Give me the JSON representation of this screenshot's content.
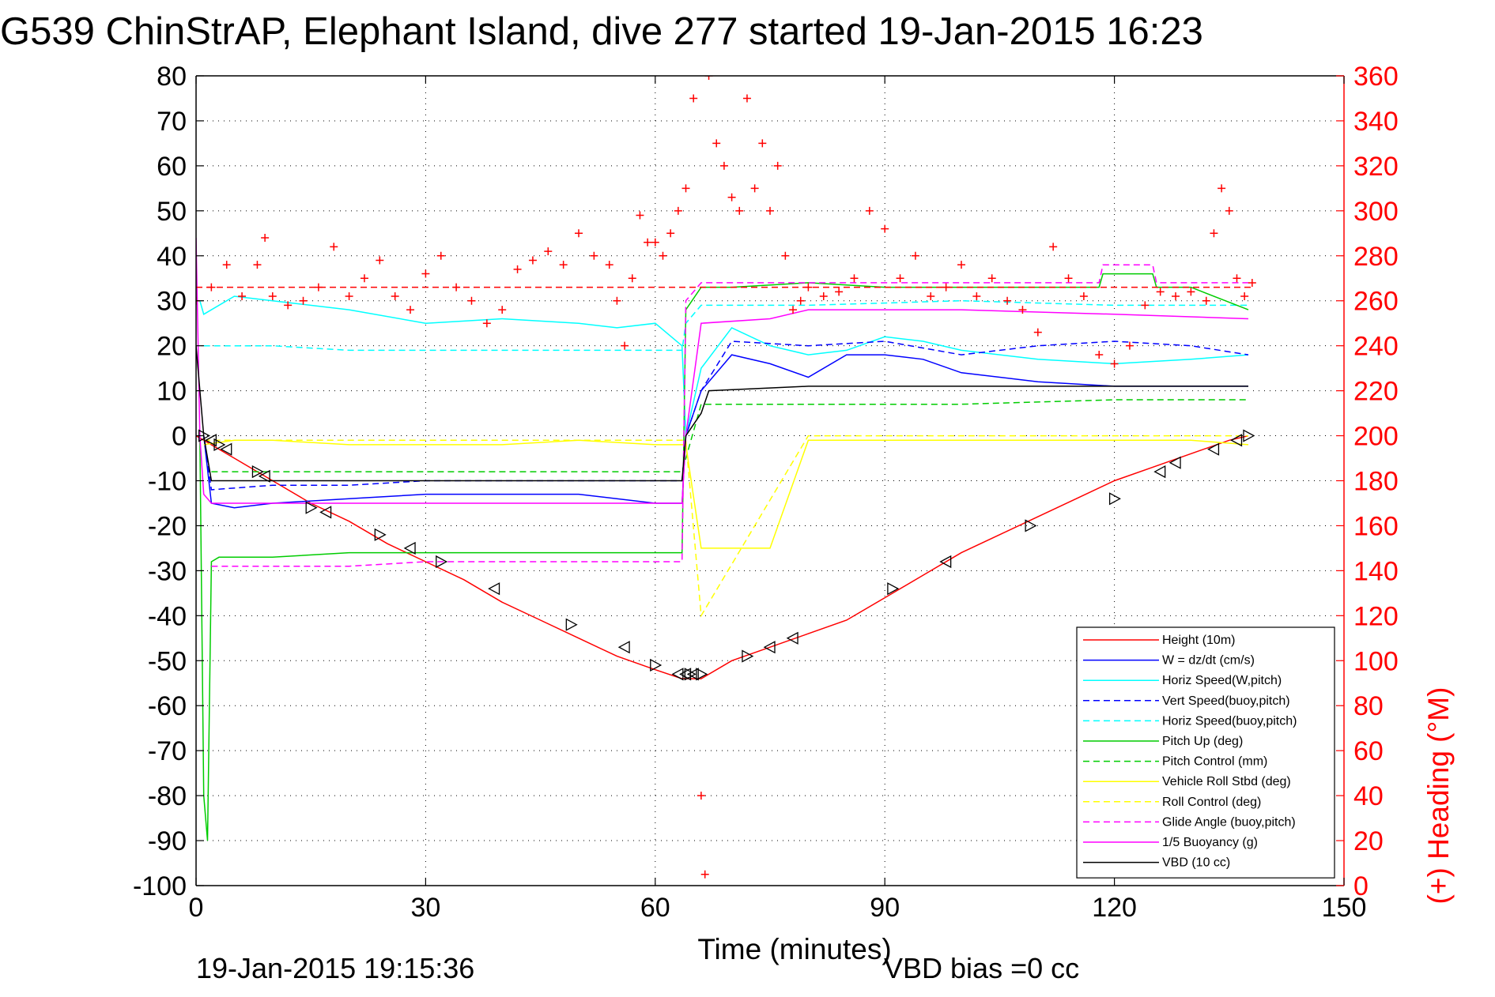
{
  "chart_data": {
    "type": "line",
    "title": "G539 ChinStrAP, Elephant Island, dive 277 started 19-Jan-2015 16:23",
    "xlabel": "Time (minutes)",
    "ylabel": "",
    "y2label": "(+) Heading (°M)",
    "xlim": [
      0,
      150
    ],
    "ylim": [
      -100,
      80
    ],
    "y2lim": [
      0,
      360
    ],
    "xticks": [
      0,
      30,
      60,
      90,
      120,
      150
    ],
    "yticks": [
      -100,
      -90,
      -80,
      -70,
      -60,
      -50,
      -40,
      -30,
      -20,
      -10,
      0,
      10,
      20,
      30,
      40,
      50,
      60,
      70,
      80
    ],
    "y2ticks": [
      0,
      20,
      40,
      60,
      80,
      100,
      120,
      140,
      160,
      180,
      200,
      220,
      240,
      260,
      280,
      300,
      320,
      340,
      360
    ],
    "grid": true,
    "legend_position": "lower-right",
    "footer_left": "19-Jan-2015 19:15:36",
    "footer_right": "VBD bias =0 cc",
    "series": [
      {
        "name": "Height (10m)",
        "color": "#ff0000",
        "style": "solid",
        "x": [
          0,
          5,
          10,
          15,
          20,
          25,
          30,
          35,
          40,
          45,
          50,
          55,
          60,
          63.5,
          66,
          70,
          75,
          80,
          85,
          90,
          95,
          100,
          105,
          110,
          115,
          120,
          125,
          130,
          135,
          137.5
        ],
        "y": [
          0,
          -5,
          -10,
          -15,
          -19,
          -24,
          -28,
          -32,
          -37,
          -41,
          -45,
          -49,
          -52,
          -54,
          -54,
          -50,
          -47,
          -44,
          -41,
          -36,
          -31,
          -26,
          -22,
          -18,
          -14,
          -10,
          -7,
          -4,
          -1,
          0
        ]
      },
      {
        "name": "W = dz/dt (cm/s)",
        "color": "#0000ff",
        "style": "solid",
        "x": [
          1,
          2,
          5,
          10,
          20,
          30,
          40,
          50,
          60,
          63.5,
          64,
          66,
          70,
          75,
          80,
          85,
          90,
          95,
          100,
          110,
          120,
          130,
          137.5
        ],
        "y": [
          0,
          -15,
          -16,
          -15,
          -14,
          -13,
          -13,
          -13,
          -15,
          -15,
          0,
          10,
          18,
          16,
          13,
          18,
          18,
          17,
          14,
          12,
          11,
          11,
          11
        ]
      },
      {
        "name": "Horiz Speed(W,pitch)",
        "color": "#00ffff",
        "style": "solid",
        "x": [
          0.5,
          1,
          5,
          10,
          20,
          30,
          40,
          50,
          55,
          60,
          63.5,
          64,
          66,
          70,
          75,
          80,
          85,
          90,
          95,
          100,
          110,
          120,
          130,
          137.5
        ],
        "y": [
          30,
          27,
          31,
          30,
          28,
          25,
          26,
          25,
          24,
          25,
          20,
          0,
          15,
          24,
          20,
          18,
          19,
          22,
          21,
          19,
          17,
          16,
          17,
          18
        ]
      },
      {
        "name": "Vert Speed(buoy,pitch)",
        "color": "#0000ff",
        "style": "dashed",
        "x": [
          1,
          2,
          10,
          20,
          30,
          40,
          50,
          60,
          63.5,
          64,
          66,
          70,
          80,
          90,
          100,
          110,
          120,
          130,
          137.5
        ],
        "y": [
          0,
          -12,
          -11,
          -11,
          -10,
          -10,
          -10,
          -10,
          -10,
          0,
          10,
          21,
          20,
          21,
          18,
          20,
          21,
          20,
          18
        ]
      },
      {
        "name": "Horiz Speed(buoy,pitch)",
        "color": "#00ffff",
        "style": "dashed",
        "x": [
          1,
          2,
          10,
          20,
          30,
          40,
          50,
          60,
          63.5,
          64,
          66,
          80,
          100,
          120,
          137.5
        ],
        "y": [
          20,
          20,
          20,
          19,
          19,
          19,
          19,
          19,
          19,
          25,
          29,
          29,
          30,
          29,
          29
        ]
      },
      {
        "name": "Pitch Up (deg)",
        "color": "#00cc00",
        "style": "solid",
        "x": [
          0.5,
          1,
          1.5,
          2,
          3,
          10,
          20,
          30,
          40,
          50,
          60,
          63.5,
          64,
          66,
          70,
          80,
          90,
          100,
          110,
          118,
          118.5,
          125,
          125.5,
          130,
          137.5
        ],
        "y": [
          0,
          -80,
          -90,
          -28,
          -27,
          -27,
          -26,
          -26,
          -26,
          -26,
          -26,
          -26,
          28,
          33,
          33,
          34,
          33,
          33,
          33,
          33,
          36,
          36,
          33,
          33,
          28
        ]
      },
      {
        "name": "Pitch Control (mm)",
        "color": "#00cc00",
        "style": "dashed",
        "x": [
          2,
          10,
          20,
          30,
          40,
          50,
          60,
          63.5,
          66,
          80,
          100,
          120,
          137.5
        ],
        "y": [
          -8,
          -8,
          -8,
          -8,
          -8,
          -8,
          -8,
          -8,
          7,
          7,
          7,
          8,
          8
        ]
      },
      {
        "name": "Vehicle Roll Stbd (deg)",
        "color": "#ffff00",
        "style": "solid",
        "x": [
          1,
          5,
          10,
          20,
          30,
          40,
          50,
          60,
          64,
          66,
          70,
          75,
          80,
          90,
          100,
          110,
          120,
          130,
          137.5
        ],
        "y": [
          -2,
          -1,
          -1,
          -2,
          -2,
          -2,
          -1,
          -2,
          -2,
          -25,
          -25,
          -25,
          -1,
          -1,
          -1,
          -1,
          -1,
          -1,
          -2
        ]
      },
      {
        "name": "Roll Control (deg)",
        "color": "#ffff00",
        "style": "dashed",
        "x": [
          1,
          10,
          20,
          30,
          40,
          50,
          60,
          64,
          66,
          80,
          100,
          120,
          130,
          137.5
        ],
        "y": [
          -1,
          -1,
          -1,
          -1,
          -1,
          -1,
          -1,
          -1,
          -40,
          0,
          0,
          0,
          0,
          0
        ]
      },
      {
        "name": "Glide Angle (buoy,pitch)",
        "color": "#ff00ff",
        "style": "dashed",
        "x": [
          2,
          10,
          20,
          30,
          40,
          50,
          60,
          63.5,
          64,
          66,
          80,
          100,
          110,
          118,
          118.5,
          125,
          125.5,
          137.5
        ],
        "y": [
          -29,
          -29,
          -29,
          -28,
          -28,
          -28,
          -28,
          -28,
          30,
          34,
          34,
          34,
          34,
          34,
          38,
          38,
          34,
          34
        ]
      },
      {
        "name": "1/5 Buoyancy (g)",
        "color": "#ff00ff",
        "style": "solid",
        "x": [
          0,
          0.5,
          1,
          2,
          10,
          20,
          30,
          40,
          50,
          60,
          63.5,
          64,
          66,
          75,
          80,
          100,
          120,
          137.5
        ],
        "y": [
          44,
          0,
          -13,
          -15,
          -15,
          -15,
          -15,
          -15,
          -15,
          -15,
          -15,
          0,
          25,
          26,
          28,
          28,
          27,
          26
        ]
      },
      {
        "name": "VBD (10 cc)",
        "color": "#000000",
        "style": "solid",
        "x": [
          0,
          1,
          2,
          10,
          20,
          30,
          40,
          50,
          60,
          63.5,
          64,
          66,
          67,
          80,
          100,
          120,
          137.5
        ],
        "y": [
          20,
          0,
          -10,
          -10,
          -10,
          -10,
          -10,
          -10,
          -10,
          -10,
          0,
          5,
          10,
          11,
          11,
          11,
          11
        ]
      },
      {
        "name": "",
        "color": "#ff0000",
        "style": "dashed",
        "x": [
          0,
          138
        ],
        "y": [
          33,
          33
        ]
      }
    ],
    "heading": {
      "color": "#ff0000",
      "marker": "+",
      "axis": "right",
      "x": [
        0,
        2,
        4,
        6,
        8,
        9,
        10,
        12,
        14,
        16,
        18,
        20,
        22,
        24,
        26,
        28,
        30,
        32,
        34,
        36,
        38,
        40,
        42,
        44,
        46,
        48,
        50,
        52,
        54,
        55,
        56,
        57,
        58,
        59,
        60,
        61,
        62,
        63,
        64,
        65,
        66,
        66.5,
        67,
        68,
        69,
        70,
        71,
        72,
        73,
        74,
        75,
        76,
        77,
        78,
        79,
        80,
        82,
        84,
        86,
        88,
        90,
        92,
        94,
        96,
        98,
        100,
        102,
        104,
        106,
        108,
        110,
        112,
        114,
        116,
        118,
        120,
        122,
        124,
        126,
        128,
        130,
        132,
        133,
        134,
        135,
        136,
        137,
        138
      ],
      "y": [
        260,
        266,
        276,
        262,
        276,
        288,
        262,
        258,
        260,
        266,
        284,
        262,
        270,
        278,
        262,
        256,
        272,
        280,
        266,
        260,
        250,
        256,
        274,
        278,
        282,
        276,
        290,
        280,
        276,
        260,
        240,
        270,
        298,
        286,
        286,
        280,
        290,
        300,
        310,
        350,
        40,
        5,
        360,
        330,
        320,
        306,
        300,
        350,
        310,
        330,
        300,
        320,
        280,
        256,
        260,
        266,
        262,
        264,
        270,
        300,
        292,
        270,
        280,
        262,
        266,
        276,
        262,
        270,
        260,
        256,
        246,
        284,
        270,
        262,
        236,
        232,
        240,
        258,
        264,
        262,
        264,
        260,
        290,
        310,
        300,
        270,
        262,
        268
      ]
    },
    "markers": {
      "color": "#000000",
      "x": [
        1,
        2,
        3,
        4,
        8,
        9,
        15,
        17,
        24,
        28,
        32,
        39,
        49,
        56,
        60,
        63,
        64,
        64.5,
        65,
        66,
        72,
        75,
        78,
        91,
        98,
        109,
        120,
        126,
        128,
        133,
        136,
        137.5
      ],
      "y": [
        0,
        -1,
        -2,
        -3,
        -8,
        -9,
        -16,
        -17,
        -22,
        -25,
        -28,
        -34,
        -42,
        -47,
        -51,
        -53,
        -53,
        -53,
        -53,
        -53,
        -49,
        -47,
        -45,
        -34,
        -28,
        -20,
        -14,
        -8,
        -6,
        -3,
        -1,
        0
      ],
      "dir": [
        "r",
        "l",
        "r",
        "l",
        "r",
        "l",
        "r",
        "l",
        "r",
        "l",
        "r",
        "l",
        "r",
        "l",
        "r",
        "l",
        "l",
        "r",
        "l",
        "r",
        "r",
        "l",
        "l",
        "r",
        "l",
        "r",
        "r",
        "l",
        "l",
        "l",
        "l",
        "r"
      ]
    }
  }
}
